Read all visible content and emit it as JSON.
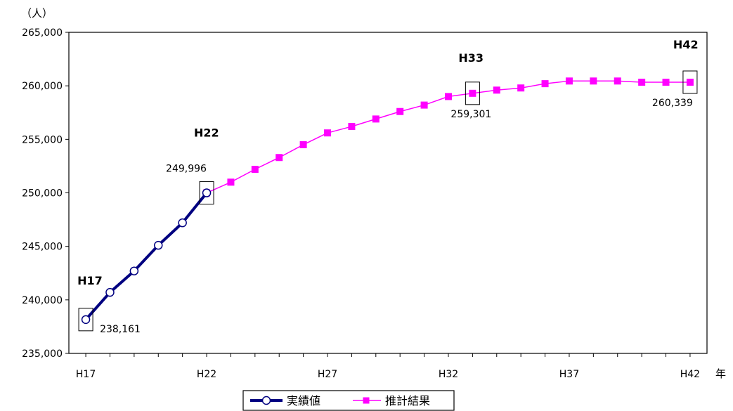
{
  "chart_data": {
    "type": "line",
    "y_unit": "（人）",
    "x_unit": "年",
    "ylim": [
      235000,
      265000
    ],
    "y_ticks": [
      "235,000",
      "240,000",
      "245,000",
      "250,000",
      "255,000",
      "260,000",
      "265,000"
    ],
    "y_tick_values": [
      235000,
      240000,
      245000,
      250000,
      255000,
      260000,
      265000
    ],
    "x_tick_labels": [
      "H17",
      "H22",
      "H27",
      "H32",
      "H37",
      "H42"
    ],
    "x_tick_years": [
      17,
      22,
      27,
      32,
      37,
      42
    ],
    "grid": false,
    "legend_position": "bottom-center",
    "series": [
      {
        "name": "実績値",
        "color": "#000080",
        "marker": "circle-open",
        "x": [
          17,
          18,
          19,
          20,
          21,
          22
        ],
        "values": [
          238161,
          240700,
          242700,
          245100,
          247200,
          249996
        ]
      },
      {
        "name": "推計結果",
        "color": "#ff00ff",
        "marker": "square",
        "x": [
          22,
          23,
          24,
          25,
          26,
          27,
          28,
          29,
          30,
          31,
          32,
          33,
          34,
          35,
          36,
          37,
          38,
          39,
          40,
          41,
          42
        ],
        "values": [
          249996,
          251000,
          252200,
          253300,
          254500,
          255600,
          256200,
          256900,
          257600,
          258200,
          259000,
          259301,
          259600,
          259800,
          260200,
          260450,
          260450,
          260450,
          260339,
          260339,
          260339
        ]
      }
    ],
    "annotations": [
      {
        "era": "H17",
        "value_label": "238,161",
        "x": 17,
        "y": 238161
      },
      {
        "era": "H22",
        "value_label": "249,996",
        "x": 22,
        "y": 249996
      },
      {
        "era": "H33",
        "value_label": "259,301",
        "x": 33,
        "y": 259301
      },
      {
        "era": "H42",
        "value_label": "260,339",
        "x": 42,
        "y": 260339
      }
    ]
  }
}
